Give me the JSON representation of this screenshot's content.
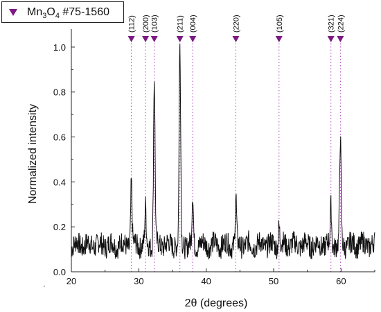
{
  "chart_data": {
    "type": "line",
    "xlabel": "2θ (degrees)",
    "ylabel": "Normalized intensity",
    "xlim": [
      20,
      65
    ],
    "ylim": [
      0.0,
      1.08
    ],
    "xticks": [
      20,
      30,
      40,
      50,
      60
    ],
    "yticks": [
      0.0,
      0.2,
      0.4,
      0.6,
      0.8,
      1.0
    ],
    "ytick_labels": [
      "0.0",
      "0.2",
      "0.4",
      "0.6",
      "0.8",
      "1.0"
    ],
    "legend": {
      "formula_main": "Mn",
      "formula_sub1": "3",
      "formula_o": "O",
      "formula_sub2": "4",
      "ref": " #75-1560",
      "placement": "top-left"
    },
    "reference_peaks": [
      {
        "hkl": "(112)",
        "x": 28.9
      },
      {
        "hkl": "(200)",
        "x": 31.0
      },
      {
        "hkl": "(103)",
        "x": 32.3
      },
      {
        "hkl": "(211)",
        "x": 36.1
      },
      {
        "hkl": "(004)",
        "x": 38.0
      },
      {
        "hkl": "(220)",
        "x": 44.4
      },
      {
        "hkl": "(105)",
        "x": 50.8
      },
      {
        "hkl": "(321)",
        "x": 58.5
      },
      {
        "hkl": "(224)",
        "x": 59.9
      }
    ],
    "series": [
      {
        "peaks": [
          {
            "x": 28.9,
            "y": 0.4
          },
          {
            "x": 31.0,
            "y": 0.28
          },
          {
            "x": 32.3,
            "y": 0.86
          },
          {
            "x": 36.1,
            "y": 1.0
          },
          {
            "x": 38.0,
            "y": 0.34
          },
          {
            "x": 44.4,
            "y": 0.33
          },
          {
            "x": 50.8,
            "y": 0.21
          },
          {
            "x": 58.5,
            "y": 0.29
          },
          {
            "x": 59.9,
            "y": 0.59
          }
        ],
        "baseline": 0.12
      }
    ]
  },
  "footer_mark": "·"
}
